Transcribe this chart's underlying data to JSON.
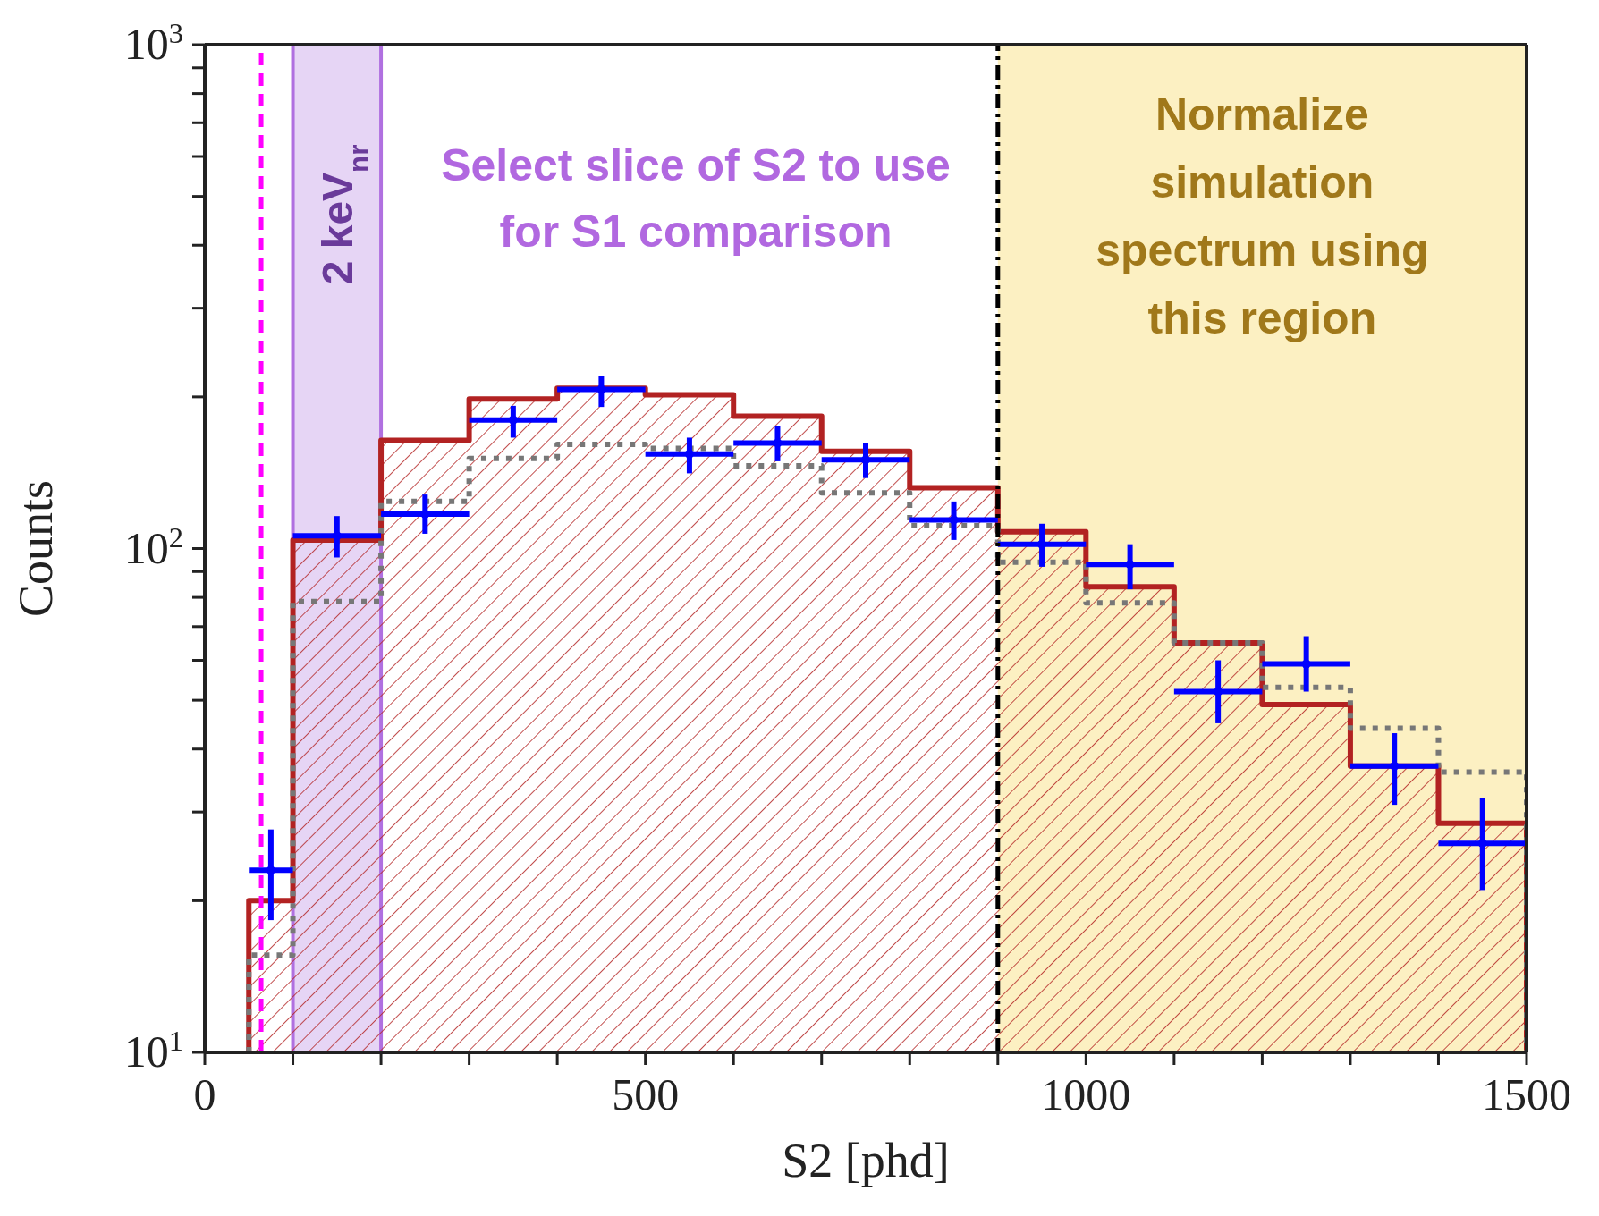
{
  "chart_data": {
    "type": "histogram",
    "xlabel": "S2 [phd]",
    "ylabel": "Counts",
    "annotations": [
      "Select slice of S2 to use for S1 comparison"
    ],
    "xlim": [
      0,
      1500
    ],
    "xticks": [
      0,
      {
        "value": 100,
        "label": null
      },
      {
        "value": 200,
        "label": null
      },
      {
        "value": 300,
        "label": null
      },
      {
        "value": 400,
        "label": null
      },
      500,
      {
        "value": 600,
        "label": null
      },
      {
        "value": 700,
        "label": null
      },
      {
        "value": 800,
        "label": null
      },
      {
        "value": 900,
        "label": null
      },
      1000,
      {
        "value": 1100,
        "label": null
      },
      {
        "value": 1200,
        "label": null
      },
      {
        "value": 1300,
        "label": null
      },
      {
        "value": 1400,
        "label": null
      },
      1500
    ],
    "ylim": [
      10,
      1000
    ],
    "yticks": [
      {
        "value": 10,
        "label": "10$^{1}$"
      },
      {
        "value": 20,
        "label": null
      },
      {
        "value": 30,
        "label": null
      },
      {
        "value": 40,
        "label": null
      },
      {
        "value": 50,
        "label": null
      },
      {
        "value": 60,
        "label": null
      },
      {
        "value": 70,
        "label": null
      },
      {
        "value": 80,
        "label": null
      },
      {
        "value": 90,
        "label": null
      },
      {
        "value": 100,
        "label": "10$^{2}$"
      },
      {
        "value": 200,
        "label": null
      },
      {
        "value": 300,
        "label": null
      },
      {
        "value": 400,
        "label": null
      },
      {
        "value": 500,
        "label": null
      },
      {
        "value": 600,
        "label": null
      },
      {
        "value": 700,
        "label": null
      },
      {
        "value": 800,
        "label": null
      },
      {
        "value": 900,
        "label": null
      },
      {
        "value": 1000,
        "label": "10$^{3}$"
      }
    ],
    "log": "y",
    "grid": false,
    "bins": [
      50,
      100,
      200,
      300,
      400,
      500,
      600,
      700,
      800,
      900,
      1000,
      1100,
      1200,
      1300,
      1400,
      1500
    ],
    "series": [
      {
        "color": "#b22222",
        "values": [
          20,
          104,
          164,
          198,
          208,
          202,
          183,
          156,
          132,
          108,
          84,
          65,
          49,
          37,
          28.5
        ]
      },
      {
        "color": "#777777",
        "line_style": "dotted",
        "values": [
          15.6,
          78.5,
          124,
          151,
          161,
          158,
          146,
          129,
          111,
          94,
          78,
          65,
          53,
          44,
          36
        ]
      },
      {
        "type": "scatter",
        "color": "#0000ff",
        "x": [
          75,
          150,
          250,
          350,
          450,
          550,
          650,
          750,
          850,
          950,
          1050,
          1150,
          1250,
          1350,
          1450
        ],
        "values": [
          23,
          106,
          117,
          180,
          207,
          154,
          162,
          150,
          114,
          102,
          93,
          52,
          59,
          37,
          26
        ],
        "errors": [
          [
            18.3,
            27.7
          ],
          [
            96,
            116
          ],
          [
            107,
            128
          ],
          [
            166,
            192
          ],
          [
            191,
            220
          ],
          [
            141,
            166
          ],
          [
            149,
            175
          ],
          [
            138,
            162
          ],
          [
            104,
            124
          ],
          [
            92,
            112
          ],
          [
            83,
            102
          ],
          [
            45,
            60
          ],
          [
            52,
            67
          ],
          [
            31,
            43
          ],
          [
            21,
            32
          ]
        ],
        "xerrors": [
          25,
          50,
          50,
          50,
          50,
          50,
          50,
          50,
          50,
          50,
          50,
          50,
          50,
          50,
          50
        ]
      }
    ],
    "bands": [
      {
        "axis": "x",
        "from": 100,
        "to": 200,
        "label": "2 keV$_{nr}$",
        "color": "#e6d5f5"
      },
      {
        "axis": "x",
        "from": 900,
        "to": 1500,
        "label": "Normalize simulation spectrum using this region",
        "color": "#fcf0c2"
      }
    ],
    "ref_lines": [
      {
        "axis": "x",
        "value": 64,
        "color": "#ff00ff",
        "line_style": "dashed"
      },
      {
        "axis": "x",
        "value": 900,
        "color": "#000000",
        "line_style": "dashdot"
      }
    ]
  }
}
